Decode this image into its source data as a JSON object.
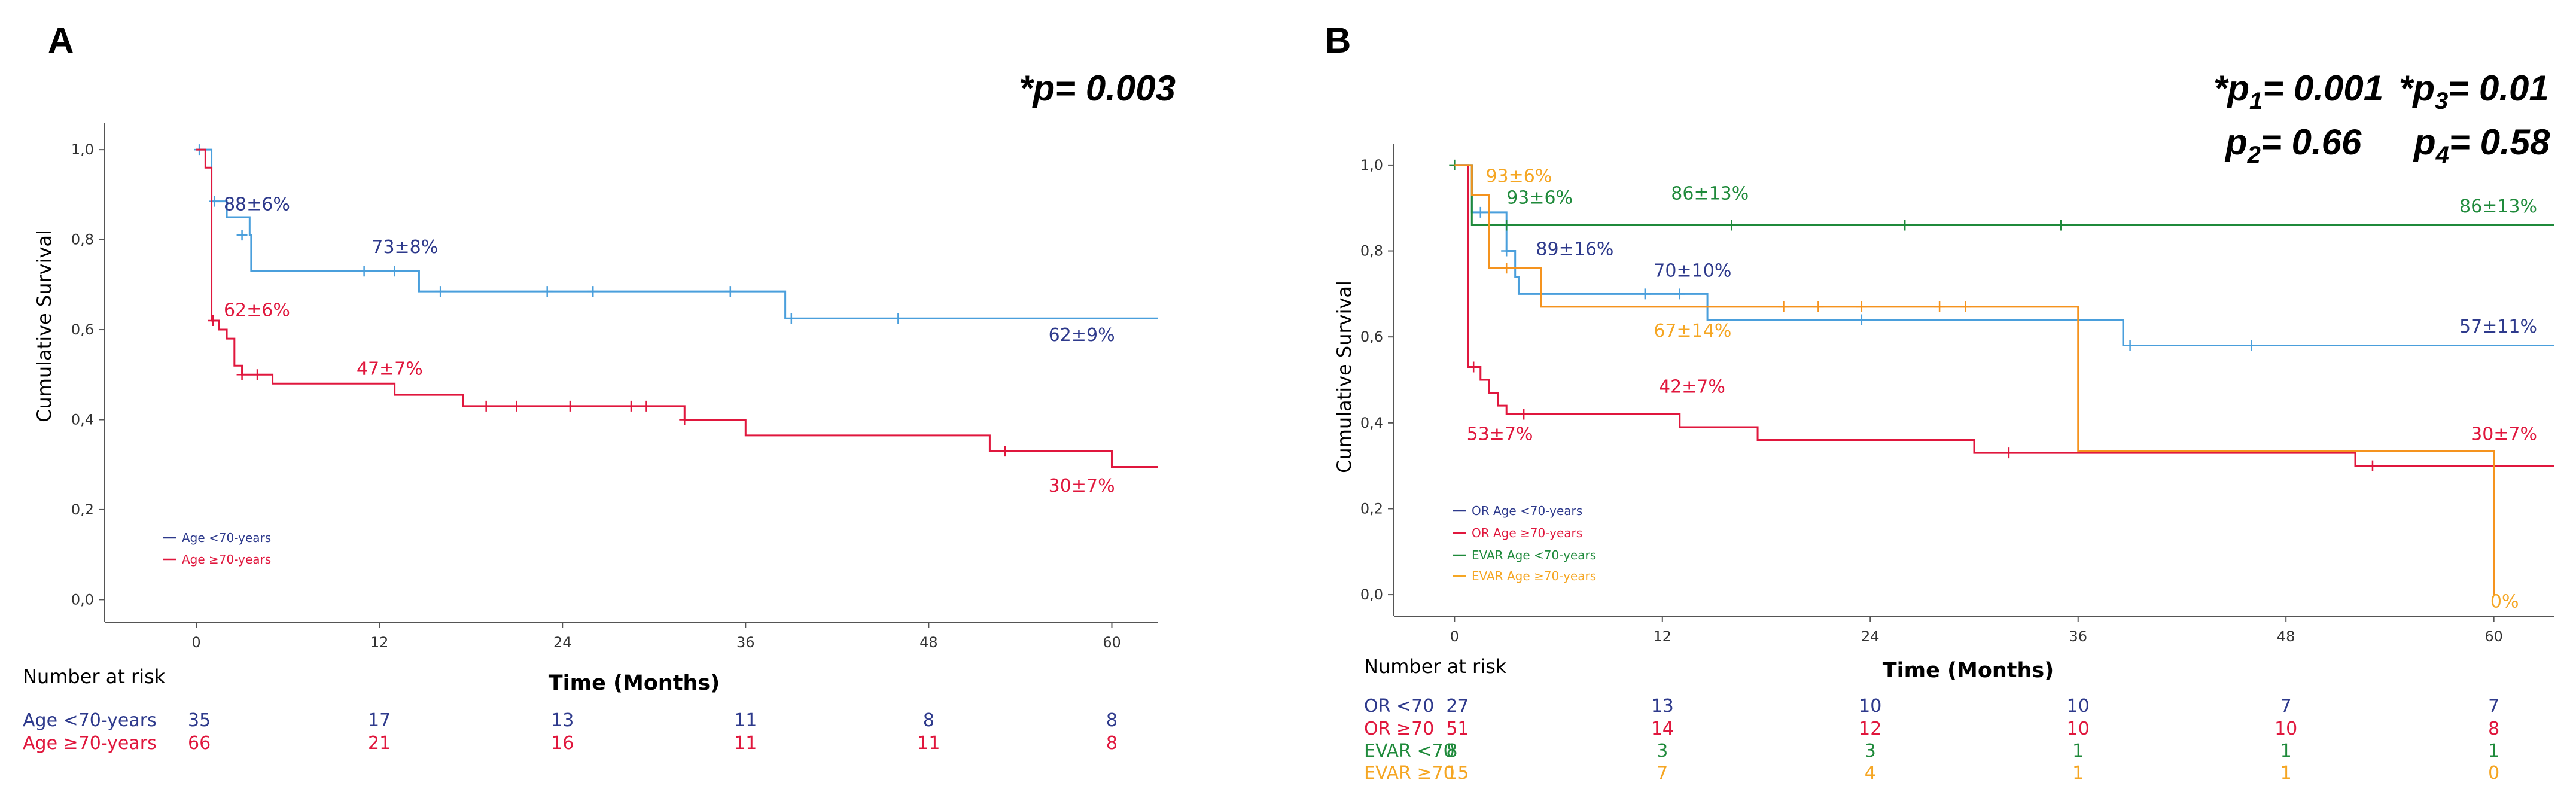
{
  "chart_data": [
    {
      "panel": "A",
      "type": "line",
      "subtype": "kaplan-meier",
      "p_value": "*p= 0.003",
      "xlabel": "Time (Months)",
      "ylabel": "Cumulative Survival",
      "xlim": [
        -6,
        63
      ],
      "ylim": [
        -0.05,
        1.06
      ],
      "xticks": [
        0,
        12,
        24,
        36,
        48,
        60
      ],
      "yticks": [
        {
          "v": 1.0,
          "label": "1,0"
        },
        {
          "v": 0.8,
          "label": "0,8"
        },
        {
          "v": 0.6,
          "label": "0,6"
        },
        {
          "v": 0.4,
          "label": "0,4"
        },
        {
          "v": 0.2,
          "label": "0,2"
        },
        {
          "v": 0.0,
          "label": "0,0"
        }
      ],
      "series": [
        {
          "name": "Age <70-years",
          "color": "#4a9fdc",
          "text_color": "#2e3a8c",
          "steps": [
            [
              0,
              1.0
            ],
            [
              1.0,
              0.885
            ],
            [
              2.0,
              0.85
            ],
            [
              3.5,
              0.81
            ],
            [
              3.6,
              0.73
            ],
            [
              14.5,
              0.73
            ],
            [
              14.6,
              0.685
            ],
            [
              38.5,
              0.685
            ],
            [
              38.6,
              0.625
            ],
            [
              63,
              0.625
            ]
          ],
          "censors": [
            [
              0.2,
              1.0
            ],
            [
              1.2,
              0.885
            ],
            [
              3.0,
              0.81
            ],
            [
              11.0,
              0.73
            ],
            [
              13.0,
              0.73
            ],
            [
              16.0,
              0.685
            ],
            [
              23.0,
              0.685
            ],
            [
              26.0,
              0.685
            ],
            [
              35.0,
              0.685
            ],
            [
              39.0,
              0.625
            ],
            [
              46.0,
              0.625
            ]
          ],
          "annotations": [
            {
              "text": "88±6%",
              "x": 1.8,
              "y": 0.865,
              "anchor": "start"
            },
            {
              "text": "73±8%",
              "x": 11.5,
              "y": 0.77,
              "anchor": "start"
            },
            {
              "text": "62±9%",
              "x": 60.2,
              "y": 0.575,
              "anchor": "end"
            }
          ]
        },
        {
          "name": "Age ≥70-years",
          "color": "#e0173d",
          "text_color": "#e0173d",
          "steps": [
            [
              0,
              1.0
            ],
            [
              0.6,
              0.96
            ],
            [
              1.0,
              0.62
            ],
            [
              1.5,
              0.6
            ],
            [
              2.0,
              0.58
            ],
            [
              2.5,
              0.52
            ],
            [
              3.0,
              0.5
            ],
            [
              5.0,
              0.48
            ],
            [
              13.0,
              0.455
            ],
            [
              17.5,
              0.43
            ],
            [
              32.0,
              0.4
            ],
            [
              36.0,
              0.365
            ],
            [
              52.0,
              0.33
            ],
            [
              60.0,
              0.295
            ],
            [
              63,
              0.295
            ]
          ],
          "censors": [
            [
              1.1,
              0.62
            ],
            [
              3.0,
              0.5
            ],
            [
              4.0,
              0.5
            ],
            [
              19.0,
              0.43
            ],
            [
              21.0,
              0.43
            ],
            [
              24.5,
              0.43
            ],
            [
              28.5,
              0.43
            ],
            [
              29.5,
              0.43
            ],
            [
              32.0,
              0.4
            ],
            [
              53.0,
              0.33
            ]
          ],
          "annotations": [
            {
              "text": "62±6%",
              "x": 1.8,
              "y": 0.63,
              "anchor": "start"
            },
            {
              "text": "47±7%",
              "x": 10.5,
              "y": 0.5,
              "anchor": "start"
            },
            {
              "text": "30±7%",
              "x": 60.2,
              "y": 0.24,
              "anchor": "end"
            }
          ]
        }
      ],
      "risk_header": "Number at risk",
      "risk_times": [
        0,
        12,
        24,
        36,
        48,
        60
      ],
      "risk_table": [
        {
          "label": "Age <70-years",
          "color": "#2e3a8c",
          "values": [
            "35",
            "17",
            "13",
            "11",
            "8",
            "8"
          ]
        },
        {
          "label": "Age ≥70-years",
          "color": "#e0173d",
          "values": [
            "66",
            "21",
            "16",
            "11",
            "11",
            "8"
          ]
        }
      ]
    },
    {
      "panel": "B",
      "type": "line",
      "subtype": "kaplan-meier",
      "p_values": {
        "p1": "= 0.001",
        "p2": "= 0.66",
        "p3": "= 0.01",
        "p4": "= 0.58"
      },
      "xlabel": "Time (Months)",
      "ylabel": "Cumulative Survival",
      "xlim": [
        -3.5,
        63.5
      ],
      "ylim": [
        -0.05,
        1.05
      ],
      "xticks": [
        0,
        12,
        24,
        36,
        48,
        60
      ],
      "yticks": [
        {
          "v": 1.0,
          "label": "1,0"
        },
        {
          "v": 0.8,
          "label": "0,8"
        },
        {
          "v": 0.6,
          "label": "0,6"
        },
        {
          "v": 0.4,
          "label": "0,4"
        },
        {
          "v": 0.2,
          "label": "0,2"
        },
        {
          "v": 0.0,
          "label": "0,0"
        }
      ],
      "series": [
        {
          "name": "OR Age <70-years",
          "color": "#4a9fdc",
          "text_color": "#2e3a8c",
          "steps": [
            [
              0,
              1.0
            ],
            [
              1.0,
              0.89
            ],
            [
              3.0,
              0.8
            ],
            [
              3.5,
              0.74
            ],
            [
              3.7,
              0.7
            ],
            [
              14.5,
              0.7
            ],
            [
              14.6,
              0.64
            ],
            [
              38.5,
              0.64
            ],
            [
              38.6,
              0.58
            ],
            [
              63.5,
              0.58
            ]
          ],
          "censors": [
            [
              1.5,
              0.89
            ],
            [
              3.0,
              0.8
            ],
            [
              11.0,
              0.7
            ],
            [
              13.0,
              0.7
            ],
            [
              23.5,
              0.64
            ],
            [
              39.0,
              0.58
            ],
            [
              46.0,
              0.58
            ]
          ],
          "annotations": [
            {
              "text": "89±16%",
              "x": 4.7,
              "y": 0.79,
              "anchor": "start"
            },
            {
              "text": "70±10%",
              "x": 11.5,
              "y": 0.74,
              "anchor": "start"
            },
            {
              "text": "57±11%",
              "x": 62.5,
              "y": 0.61,
              "anchor": "end"
            }
          ]
        },
        {
          "name": "OR Age ≥70-years",
          "color": "#e0173d",
          "text_color": "#e0173d",
          "steps": [
            [
              0,
              1.0
            ],
            [
              0.8,
              0.53
            ],
            [
              1.5,
              0.5
            ],
            [
              2.0,
              0.47
            ],
            [
              2.5,
              0.44
            ],
            [
              3.0,
              0.42
            ],
            [
              13.0,
              0.39
            ],
            [
              17.5,
              0.36
            ],
            [
              30.0,
              0.33
            ],
            [
              52.0,
              0.3
            ],
            [
              63.5,
              0.3
            ]
          ],
          "censors": [
            [
              1.1,
              0.53
            ],
            [
              4.0,
              0.42
            ],
            [
              32.0,
              0.33
            ],
            [
              53.0,
              0.3
            ]
          ],
          "annotations": [
            {
              "text": "53±7%",
              "x": 0.7,
              "y": 0.36,
              "anchor": "start"
            },
            {
              "text": "42±7%",
              "x": 11.8,
              "y": 0.47,
              "anchor": "start"
            },
            {
              "text": "30±7%",
              "x": 62.5,
              "y": 0.36,
              "anchor": "end"
            }
          ]
        },
        {
          "name": "EVAR Age <70-years",
          "color": "#1f8a3b",
          "text_color": "#1f8a3b",
          "steps": [
            [
              0,
              1.0
            ],
            [
              1.0,
              0.86
            ],
            [
              63.5,
              0.86
            ]
          ],
          "censors": [
            [
              0,
              1.0
            ],
            [
              3.0,
              0.86
            ],
            [
              16.0,
              0.86
            ],
            [
              26.0,
              0.86
            ],
            [
              35.0,
              0.86
            ]
          ],
          "annotations": [
            {
              "text": "93±6%",
              "x": 3.0,
              "y": 0.91,
              "anchor": "start"
            },
            {
              "text": "86±13%",
              "x": 12.5,
              "y": 0.92,
              "anchor": "start"
            },
            {
              "text": "86±13%",
              "x": 62.5,
              "y": 0.89,
              "anchor": "end"
            }
          ]
        },
        {
          "name": "EVAR Age ≥70-years",
          "color": "#f5931e",
          "text_color": "#f5a623",
          "steps": [
            [
              0,
              1.0
            ],
            [
              1.0,
              0.93
            ],
            [
              2.0,
              0.76
            ],
            [
              5.0,
              0.67
            ],
            [
              36.0,
              0.335
            ],
            [
              53.0,
              0.335
            ],
            [
              60.0,
              0.0
            ]
          ],
          "censors": [
            [
              3.0,
              0.76
            ],
            [
              19.0,
              0.67
            ],
            [
              21.0,
              0.67
            ],
            [
              23.5,
              0.67
            ],
            [
              28.0,
              0.67
            ],
            [
              29.5,
              0.67
            ]
          ],
          "annotations": [
            {
              "text": "93±6%",
              "x": 1.8,
              "y": 0.96,
              "anchor": "start"
            },
            {
              "text": "67±14%",
              "x": 11.5,
              "y": 0.6,
              "anchor": "start"
            },
            {
              "text": "0%",
              "x": 59.8,
              "y": -0.03,
              "anchor": "start"
            }
          ]
        }
      ],
      "risk_header": "Number at risk",
      "risk_times": [
        0,
        12,
        24,
        36,
        48,
        60
      ],
      "risk_table": [
        {
          "label": "OR <70",
          "color": "#2e3a8c",
          "values": [
            "27",
            "13",
            "10",
            "10",
            "7",
            "7"
          ]
        },
        {
          "label": "OR ≥70",
          "color": "#e0173d",
          "values": [
            "51",
            "14",
            "12",
            "10",
            "10",
            "8"
          ]
        },
        {
          "label": "EVAR <70",
          "color": "#1f8a3b",
          "values": [
            "8",
            "3",
            "3",
            "1",
            "1",
            "1"
          ]
        },
        {
          "label": "EVAR ≥70",
          "color": "#f5a623",
          "values": [
            "15",
            "7",
            "4",
            "1",
            "1",
            "0"
          ]
        }
      ]
    }
  ]
}
